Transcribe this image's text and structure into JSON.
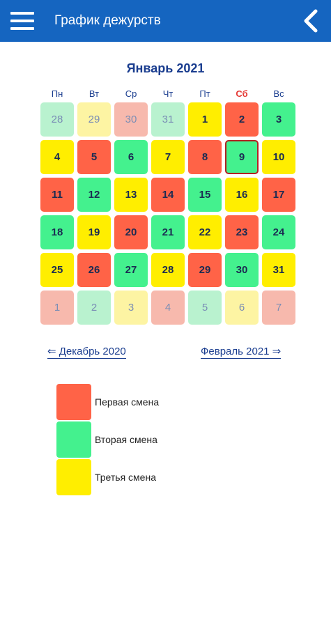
{
  "app": {
    "title": "График дежурств"
  },
  "calendar": {
    "month_title": "Январь 2021",
    "weekdays": [
      "Пн",
      "Вт",
      "Ср",
      "Чт",
      "Пт",
      "Сб",
      "Вс"
    ],
    "days": [
      {
        "n": "28",
        "shift": "s2",
        "faded": true
      },
      {
        "n": "29",
        "shift": "s3",
        "faded": true
      },
      {
        "n": "30",
        "shift": "s1",
        "faded": true
      },
      {
        "n": "31",
        "shift": "s2",
        "faded": true
      },
      {
        "n": "1",
        "shift": "s3"
      },
      {
        "n": "2",
        "shift": "s1"
      },
      {
        "n": "3",
        "shift": "s2"
      },
      {
        "n": "4",
        "shift": "s3"
      },
      {
        "n": "5",
        "shift": "s1"
      },
      {
        "n": "6",
        "shift": "s2"
      },
      {
        "n": "7",
        "shift": "s3"
      },
      {
        "n": "8",
        "shift": "s1"
      },
      {
        "n": "9",
        "shift": "s2",
        "today": true
      },
      {
        "n": "10",
        "shift": "s3"
      },
      {
        "n": "11",
        "shift": "s1"
      },
      {
        "n": "12",
        "shift": "s2"
      },
      {
        "n": "13",
        "shift": "s3"
      },
      {
        "n": "14",
        "shift": "s1"
      },
      {
        "n": "15",
        "shift": "s2"
      },
      {
        "n": "16",
        "shift": "s3"
      },
      {
        "n": "17",
        "shift": "s1"
      },
      {
        "n": "18",
        "shift": "s2"
      },
      {
        "n": "19",
        "shift": "s3"
      },
      {
        "n": "20",
        "shift": "s1"
      },
      {
        "n": "21",
        "shift": "s2"
      },
      {
        "n": "22",
        "shift": "s3"
      },
      {
        "n": "23",
        "shift": "s1"
      },
      {
        "n": "24",
        "shift": "s2"
      },
      {
        "n": "25",
        "shift": "s3"
      },
      {
        "n": "26",
        "shift": "s1"
      },
      {
        "n": "27",
        "shift": "s2"
      },
      {
        "n": "28",
        "shift": "s3"
      },
      {
        "n": "29",
        "shift": "s1"
      },
      {
        "n": "30",
        "shift": "s2"
      },
      {
        "n": "31",
        "shift": "s3"
      },
      {
        "n": "1",
        "shift": "s1",
        "faded": true
      },
      {
        "n": "2",
        "shift": "s2",
        "faded": true
      },
      {
        "n": "3",
        "shift": "s3",
        "faded": true
      },
      {
        "n": "4",
        "shift": "s1",
        "faded": true
      },
      {
        "n": "5",
        "shift": "s2",
        "faded": true
      },
      {
        "n": "6",
        "shift": "s3",
        "faded": true
      },
      {
        "n": "7",
        "shift": "s1",
        "faded": true
      }
    ]
  },
  "nav": {
    "prev": "⇐ Декабрь 2020",
    "next": "Февраль 2021 ⇒"
  },
  "legend": [
    {
      "label": "Первая смена",
      "color": "#ff6347"
    },
    {
      "label": "Вторая смена",
      "color": "#44f18e"
    },
    {
      "label": "Третья смена",
      "color": "#ffee00"
    }
  ],
  "colors": {
    "appbar": "#1565c0",
    "accent_text": "#1a3d8f",
    "weekend": "#e53935"
  }
}
